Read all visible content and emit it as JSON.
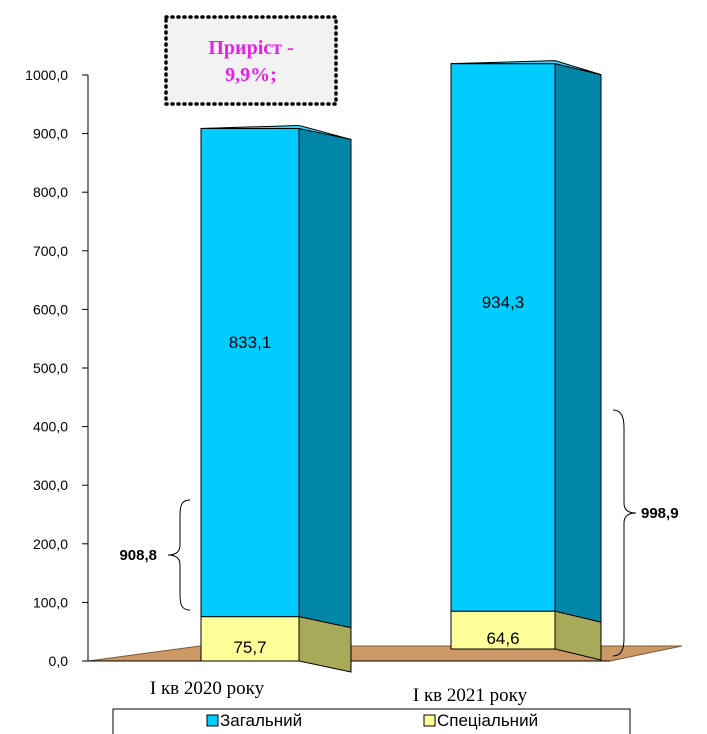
{
  "chart_data": {
    "type": "bar",
    "stacked": true,
    "three_d": true,
    "categories": [
      "І кв 2020 року",
      "І кв 2021 року"
    ],
    "series": [
      {
        "name": "Загальний",
        "values": [
          833.1,
          934.3
        ],
        "value_labels": [
          "833,1",
          "934,3"
        ],
        "color": "#00ccff"
      },
      {
        "name": "Спеціальний",
        "values": [
          75.7,
          64.6
        ],
        "value_labels": [
          "75,7",
          "64,6"
        ],
        "color": "#ffff99"
      }
    ],
    "totals": [
      908.8,
      998.9
    ],
    "total_labels": [
      "908,8",
      "998,9"
    ],
    "y_ticks": [
      "0,0",
      "100,0",
      "200,0",
      "300,0",
      "400,0",
      "500,0",
      "600,0",
      "700,0",
      "800,0",
      "900,0",
      "1000,0"
    ],
    "ylim": [
      0,
      1000
    ],
    "annotation": "Приріст - 9,9%;",
    "annotation_lines": [
      "Приріст -",
      "9,9%;"
    ],
    "legend_position": "bottom",
    "floor_color": "#cc9966",
    "title": "",
    "xlabel": "",
    "ylabel": ""
  }
}
